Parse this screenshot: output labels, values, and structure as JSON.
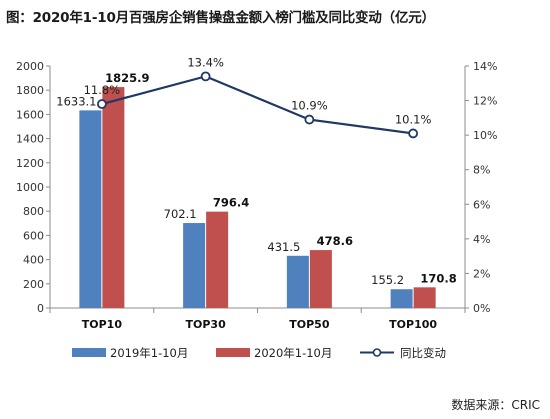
{
  "chart_data": {
    "type": "bar",
    "title": "图：2020年1-10月百强房企销售操盘金额入榜门槛及同比变动（亿元）",
    "categories": [
      "TOP10",
      "TOP30",
      "TOP50",
      "TOP100"
    ],
    "series": [
      {
        "name": "2019年1-10月",
        "kind": "bar",
        "color": "#4e81bd",
        "values": [
          1633.1,
          702.1,
          431.5,
          155.2
        ],
        "labels": [
          "1633.1",
          "702.1",
          "431.5",
          "155.2"
        ]
      },
      {
        "name": "2020年1-10月",
        "kind": "bar",
        "color": "#c0504d",
        "values": [
          1825.9,
          796.4,
          478.6,
          170.8
        ],
        "labels": [
          "1825.9",
          "796.4",
          "478.6",
          "170.8"
        ]
      },
      {
        "name": "同比变动",
        "kind": "line",
        "axis": "right",
        "color": "#1f3864",
        "values": [
          11.8,
          13.4,
          10.9,
          10.1
        ],
        "labels": [
          "11.8%",
          "13.4%",
          "10.9%",
          "10.1%"
        ]
      }
    ],
    "y_left": {
      "min": 0,
      "max": 2000,
      "step": 200,
      "ticks": [
        "0",
        "200",
        "400",
        "600",
        "800",
        "1000",
        "1200",
        "1400",
        "1600",
        "1800",
        "2000"
      ]
    },
    "y_right": {
      "min": 0,
      "max": 14,
      "step": 2,
      "ticks": [
        "0%",
        "2%",
        "4%",
        "6%",
        "8%",
        "10%",
        "12%",
        "14%"
      ]
    },
    "grid": false,
    "legend_position": "bottom",
    "source": "数据来源：CRIC"
  }
}
